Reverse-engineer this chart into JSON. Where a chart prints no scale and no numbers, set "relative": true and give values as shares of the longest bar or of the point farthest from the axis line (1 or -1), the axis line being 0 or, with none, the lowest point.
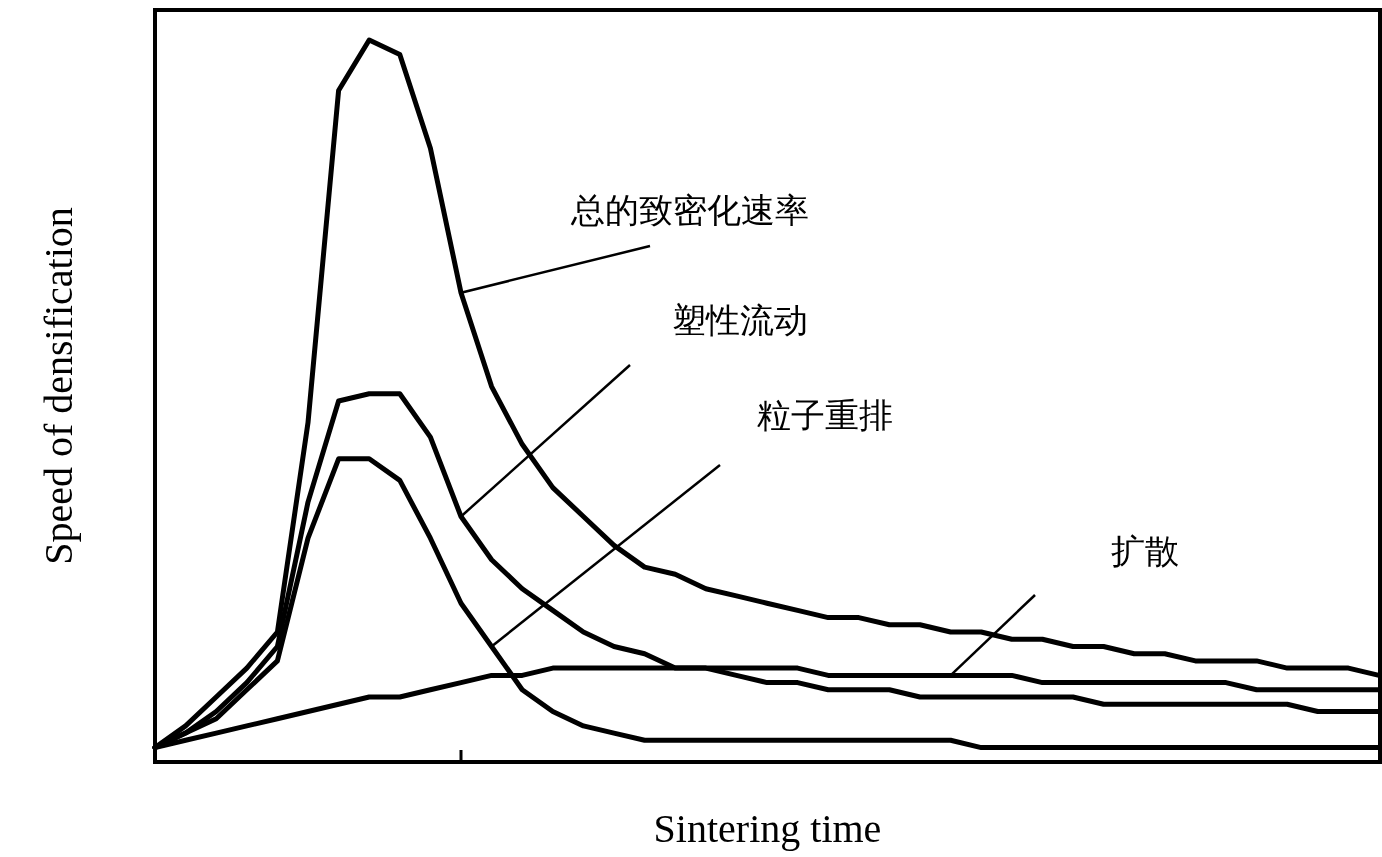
{
  "chart_data": {
    "type": "line",
    "relative": true,
    "xlabel": "Sintering time",
    "ylabel": "Speed of densification",
    "categories": [
      null,
      null,
      null,
      null,
      null,
      null,
      null,
      null,
      null,
      null,
      null,
      null,
      null,
      null,
      null,
      null,
      null,
      null,
      null,
      null,
      null,
      null,
      null,
      null,
      null,
      null,
      null,
      null,
      null,
      null,
      null,
      null,
      null,
      null,
      null,
      null,
      null,
      null,
      null,
      null,
      null
    ],
    "annotations": [
      "总的致密化速率",
      "塑性流动",
      "粒子重排",
      "扩散"
    ],
    "series": [
      {
        "color": "#000000",
        "values": [
          0.02,
          0.05,
          0.09,
          0.13,
          0.18,
          0.47,
          0.93,
          1,
          0.98,
          0.85,
          0.65,
          0.52,
          0.44,
          0.38,
          0.34,
          0.3,
          0.27,
          0.26,
          0.24,
          0.23,
          0.22,
          0.21,
          0.2,
          0.2,
          0.19,
          0.19,
          0.18,
          0.18,
          0.17,
          0.17,
          0.16,
          0.16,
          0.15,
          0.15,
          0.14,
          0.14,
          0.14,
          0.13,
          0.13,
          0.13,
          0.12
        ]
      },
      {
        "color": "#000000",
        "values": [
          0.02,
          0.04,
          0.07,
          0.11,
          0.16,
          0.36,
          0.5,
          0.51,
          0.51,
          0.45,
          0.34,
          0.28,
          0.24,
          0.21,
          0.18,
          0.16,
          0.15,
          0.13,
          0.13,
          0.12,
          0.11,
          0.11,
          0.1,
          0.1,
          0.1,
          0.09,
          0.09,
          0.09,
          0.09,
          0.09,
          0.09,
          0.08,
          0.08,
          0.08,
          0.08,
          0.08,
          0.08,
          0.08,
          0.07,
          0.07,
          0.07
        ]
      },
      {
        "color": "#000000",
        "values": [
          0.02,
          0.04,
          0.06,
          0.1,
          0.14,
          0.31,
          0.42,
          0.42,
          0.39,
          0.31,
          0.22,
          0.16,
          0.1,
          0.07,
          0.05,
          0.04,
          0.03,
          0.03,
          0.03,
          0.03,
          0.03,
          0.03,
          0.03,
          0.03,
          0.03,
          0.03,
          0.03,
          0.02,
          0.02,
          0.02,
          0.02,
          0.02,
          0.02,
          0.02,
          0.02,
          0.02,
          0.02,
          0.02,
          0.02,
          0.02,
          0.02
        ]
      },
      {
        "color": "#000000",
        "values": [
          0.02,
          0.03,
          0.04,
          0.05,
          0.06,
          0.07,
          0.08,
          0.09,
          0.09,
          0.1,
          0.11,
          0.12,
          0.12,
          0.13,
          0.13,
          0.13,
          0.13,
          0.13,
          0.13,
          0.13,
          0.13,
          0.13,
          0.12,
          0.12,
          0.12,
          0.12,
          0.12,
          0.12,
          0.12,
          0.11,
          0.11,
          0.11,
          0.11,
          0.11,
          0.11,
          0.11,
          0.1,
          0.1,
          0.1,
          0.1,
          0.1
        ]
      }
    ]
  }
}
